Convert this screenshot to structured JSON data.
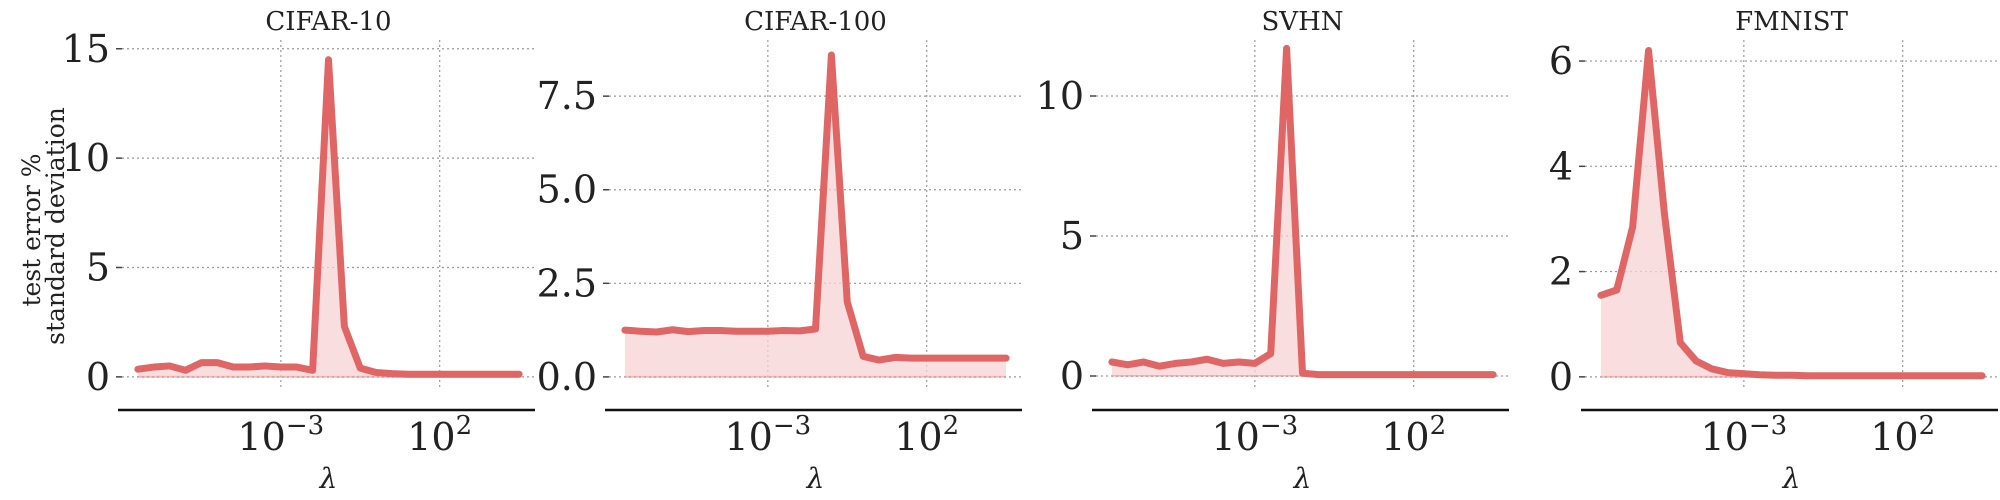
{
  "figure": {
    "ylabel_lines": [
      "test error %",
      "standard deviation"
    ],
    "color": "#e06666",
    "fill_color": "#f6d3d3"
  },
  "chart_data": [
    {
      "type": "area",
      "title": "CIFAR-10",
      "xlabel": "λ",
      "xscale": "log",
      "xticks": [
        {
          "exp": -3,
          "label": "10",
          "sup": "−3"
        },
        {
          "exp": 2,
          "label": "10",
          "sup": "2"
        }
      ],
      "yticks": [
        0,
        5,
        10,
        15
      ],
      "ytick_labels": [
        "0",
        "5",
        "10",
        "15"
      ],
      "ylim": [
        -0.6,
        15.4
      ],
      "x_log10": [
        -7.5,
        -7.0,
        -6.5,
        -6.0,
        -5.5,
        -5.0,
        -4.5,
        -4.0,
        -3.5,
        -3.0,
        -2.5,
        -2.0,
        -1.5,
        -1.0,
        -0.5,
        0.0,
        0.5,
        1.0,
        1.5,
        2.0,
        2.5,
        3.0,
        3.5,
        4.5
      ],
      "values": [
        0.35,
        0.45,
        0.5,
        0.3,
        0.65,
        0.65,
        0.45,
        0.45,
        0.5,
        0.45,
        0.45,
        0.3,
        14.5,
        2.3,
        0.4,
        0.2,
        0.15,
        0.12,
        0.12,
        0.12,
        0.12,
        0.12,
        0.12,
        0.12
      ],
      "grid": true
    },
    {
      "type": "area",
      "title": "CIFAR-100",
      "xlabel": "λ",
      "xscale": "log",
      "xticks": [
        {
          "exp": -3,
          "label": "10",
          "sup": "−3"
        },
        {
          "exp": 2,
          "label": "10",
          "sup": "2"
        }
      ],
      "yticks": [
        0,
        2.5,
        5.0,
        7.5
      ],
      "ytick_labels": [
        "0.0",
        "2.5",
        "5.0",
        "7.5"
      ],
      "ylim": [
        -0.35,
        9.0
      ],
      "x_log10": [
        -7.5,
        -7.0,
        -6.5,
        -6.0,
        -5.5,
        -5.0,
        -4.5,
        -4.0,
        -3.5,
        -3.0,
        -2.5,
        -2.0,
        -1.5,
        -1.0,
        -0.5,
        0.0,
        0.5,
        1.0,
        1.5,
        2.0,
        2.5,
        3.0,
        3.5,
        4.5
      ],
      "values": [
        1.25,
        1.22,
        1.2,
        1.26,
        1.21,
        1.24,
        1.24,
        1.22,
        1.22,
        1.22,
        1.24,
        1.23,
        1.28,
        8.6,
        2.0,
        0.55,
        0.45,
        0.52,
        0.5,
        0.5,
        0.5,
        0.5,
        0.5,
        0.5
      ],
      "grid": true
    },
    {
      "type": "area",
      "title": "SVHN",
      "xlabel": "λ",
      "xscale": "log",
      "xticks": [
        {
          "exp": -3,
          "label": "10",
          "sup": "−3"
        },
        {
          "exp": 2,
          "label": "10",
          "sup": "2"
        }
      ],
      "yticks": [
        0,
        5,
        10
      ],
      "ytick_labels": [
        "0",
        "5",
        "10"
      ],
      "ylim": [
        -0.5,
        12.0
      ],
      "x_log10": [
        -7.5,
        -7.0,
        -6.5,
        -6.0,
        -5.5,
        -5.0,
        -4.5,
        -4.0,
        -3.5,
        -3.0,
        -2.5,
        -2.0,
        -1.5,
        -1.0,
        -0.5,
        0.0,
        0.5,
        1.0,
        1.5,
        2.0,
        2.5,
        3.0,
        3.5,
        4.5
      ],
      "values": [
        0.5,
        0.4,
        0.5,
        0.35,
        0.45,
        0.5,
        0.6,
        0.45,
        0.5,
        0.45,
        0.8,
        11.7,
        0.1,
        0.05,
        0.05,
        0.05,
        0.05,
        0.05,
        0.05,
        0.05,
        0.05,
        0.05,
        0.05,
        0.05
      ],
      "grid": true
    },
    {
      "type": "area",
      "title": "FMNIST",
      "xlabel": "λ",
      "xscale": "log",
      "xticks": [
        {
          "exp": -3,
          "label": "10",
          "sup": "−3"
        },
        {
          "exp": 2,
          "label": "10",
          "sup": "2"
        }
      ],
      "yticks": [
        0,
        2,
        4,
        6
      ],
      "ytick_labels": [
        "0",
        "2",
        "4",
        "6"
      ],
      "ylim": [
        -0.25,
        6.4
      ],
      "x_log10": [
        -7.5,
        -7.0,
        -6.5,
        -6.0,
        -5.5,
        -5.0,
        -4.5,
        -4.0,
        -3.5,
        -3.0,
        -2.5,
        -2.0,
        -1.5,
        -1.0,
        -0.5,
        0.0,
        0.5,
        1.0,
        1.5,
        2.0,
        2.5,
        3.0,
        3.5,
        4.5
      ],
      "values": [
        1.55,
        1.65,
        2.85,
        6.2,
        3.1,
        0.65,
        0.3,
        0.15,
        0.08,
        0.06,
        0.04,
        0.03,
        0.03,
        0.02,
        0.02,
        0.02,
        0.02,
        0.02,
        0.02,
        0.02,
        0.02,
        0.02,
        0.02,
        0.02
      ],
      "grid": true
    }
  ]
}
